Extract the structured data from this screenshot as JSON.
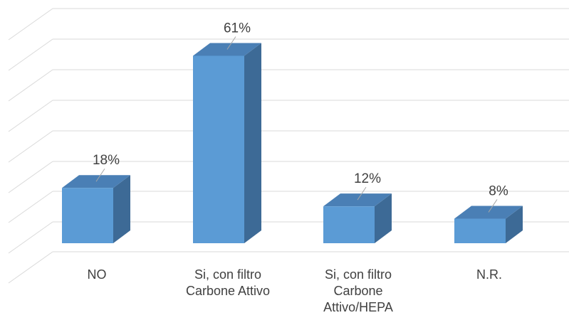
{
  "chart_data": {
    "type": "bar",
    "categories": [
      "NO",
      "Si, con filtro\nCarbone Attivo",
      "Si, con filtro\nCarbone\nAttivo/HEPA",
      "N.R."
    ],
    "values": [
      18,
      61,
      12,
      8
    ],
    "value_labels": [
      "18%",
      "61%",
      "12%",
      "8%"
    ],
    "title": "",
    "xlabel": "",
    "ylabel": "",
    "ylim": [
      0,
      70
    ],
    "grid": true,
    "legend": "none",
    "style": "3d-column",
    "colors": {
      "bar_front": "#5b9bd5",
      "bar_side": "#3d6a96",
      "bar_top": "#4a7fb5",
      "gridline": "#d9d9d9",
      "text": "#404040"
    }
  }
}
